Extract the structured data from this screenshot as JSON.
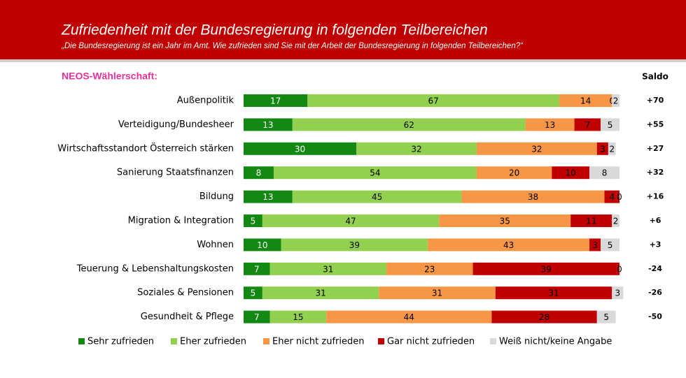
{
  "chart_data": {
    "type": "stacked-bar",
    "title": "Zufriedenheit mit der Bundesregierung in folgenden Teilbereichen",
    "subtitle": "„Die Bundesregierung ist ein Jahr im Amt. Wie zufrieden sind Sie mit der Arbeit der Bundesregierung in folgenden Teilbereichen?“",
    "group_label": "NEOS-Wählerschaft:",
    "saldo_title": "Saldo",
    "categories": [
      "Außenpolitik",
      "Verteidigung/Bundesheer",
      "Wirtschaftsstandort Österreich stärken",
      "Sanierung Staatsfinanzen",
      "Bildung",
      "Migration & Integration",
      "Wohnen",
      "Teuerung & Lebenshaltungskosten",
      "Soziales & Pensionen",
      "Gesundheit & Pflege"
    ],
    "saldo": [
      "+70",
      "+55",
      "+27",
      "+32",
      "+16",
      "+6",
      "+3",
      "-24",
      "-26",
      "-50"
    ],
    "xlim": [
      0,
      100
    ],
    "series": [
      {
        "name": "Sehr zufrieden",
        "color": "#138913",
        "values": [
          17,
          13,
          30,
          8,
          13,
          5,
          10,
          7,
          5,
          7
        ]
      },
      {
        "name": "Eher zufrieden",
        "color": "#92d050",
        "values": [
          67,
          62,
          32,
          54,
          45,
          47,
          39,
          31,
          31,
          15
        ]
      },
      {
        "name": "Eher nicht zufrieden",
        "color": "#f79646",
        "values": [
          14,
          13,
          32,
          20,
          38,
          35,
          43,
          23,
          31,
          44
        ]
      },
      {
        "name": "Gar nicht zufrieden",
        "color": "#c00000",
        "values": [
          0,
          7,
          3,
          10,
          4,
          11,
          3,
          39,
          31,
          28
        ]
      },
      {
        "name": "Weiß nicht/keine Angabe",
        "color": "#d9d9d9",
        "values": [
          2,
          5,
          2,
          8,
          0,
          2,
          5,
          0,
          3,
          5
        ]
      }
    ]
  }
}
